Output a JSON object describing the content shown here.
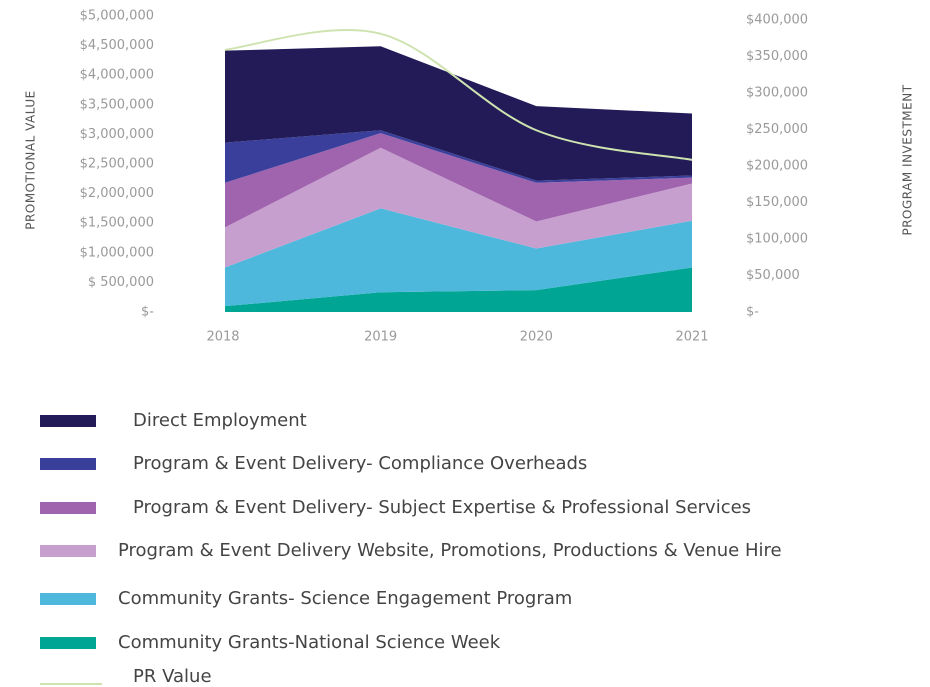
{
  "chart_data": {
    "type": "area",
    "categories": [
      "2018",
      "2019",
      "2020",
      "2021"
    ],
    "y_label": "PROMOTIONAL VALUE",
    "y2_label": "PROGRAM INVESTMENT",
    "ylim": [
      0,
      5000000
    ],
    "yticks": [
      {
        "value": 0,
        "label": "$-"
      },
      {
        "value": 500000,
        "label": "$ 500,000"
      },
      {
        "value": 1000000,
        "label": "$1,000,000"
      },
      {
        "value": 1500000,
        "label": "$1,500,000"
      },
      {
        "value": 2000000,
        "label": "$2,000,000"
      },
      {
        "value": 2500000,
        "label": "$2,500,000"
      },
      {
        "value": 3000000,
        "label": "$3,000,000"
      },
      {
        "value": 3500000,
        "label": "$3,500,000"
      },
      {
        "value": 4000000,
        "label": "$4,000,000"
      },
      {
        "value": 4500000,
        "label": "$4,500,000"
      },
      {
        "value": 5000000,
        "label": "$5,000,000"
      }
    ],
    "y2lim": [
      0,
      400000
    ],
    "y2ticks": [
      {
        "value": 0,
        "label": "$-"
      },
      {
        "value": 50000,
        "label": "$50,000"
      },
      {
        "value": 100000,
        "label": "$100,000"
      },
      {
        "value": 150000,
        "label": "$150,000"
      },
      {
        "value": 200000,
        "label": "$200,000"
      },
      {
        "value": 250000,
        "label": "$250,000"
      },
      {
        "value": 300000,
        "label": "$300,000"
      },
      {
        "value": 350000,
        "label": "$350,000"
      },
      {
        "value": 400000,
        "label": "$400,000"
      }
    ],
    "series": [
      {
        "name": "Direct Employment",
        "color": "#221b57",
        "axis": "y2",
        "stacked": true,
        "values": [
          126000,
          115000,
          102000,
          85000
        ]
      },
      {
        "name": "Program & Event Delivery- Compliance Overheads",
        "color": "#3b3f9c",
        "axis": "y2",
        "stacked": true,
        "values": [
          55000,
          4000,
          3000,
          3000
        ]
      },
      {
        "name": "Program & Event Delivery- Subject Expertise & Professional Services",
        "color": "#9f64ad",
        "axis": "y2",
        "stacked": true,
        "values": [
          61000,
          20000,
          53000,
          8000
        ]
      },
      {
        "name": "Program & Event Delivery Website, Promotions, Productions & Venue Hire",
        "color": "#c69fcf",
        "axis": "y2",
        "stacked": true,
        "values": [
          55000,
          83000,
          37000,
          51000
        ]
      },
      {
        "name": "Community Grants- Science Engagement Program",
        "color": "#4db8dc",
        "axis": "y2",
        "stacked": true,
        "values": [
          53000,
          115000,
          57000,
          64000
        ]
      },
      {
        "name": "Community Grants-National Science Week",
        "color": "#00a693",
        "axis": "y2",
        "stacked": true,
        "values": [
          8000,
          27000,
          30000,
          61000
        ]
      },
      {
        "name": "PR Value",
        "color": "#cfe3b0",
        "axis": "y",
        "stacked": false,
        "values": [
          4430000,
          4700000,
          3070000,
          2570000
        ]
      }
    ]
  }
}
